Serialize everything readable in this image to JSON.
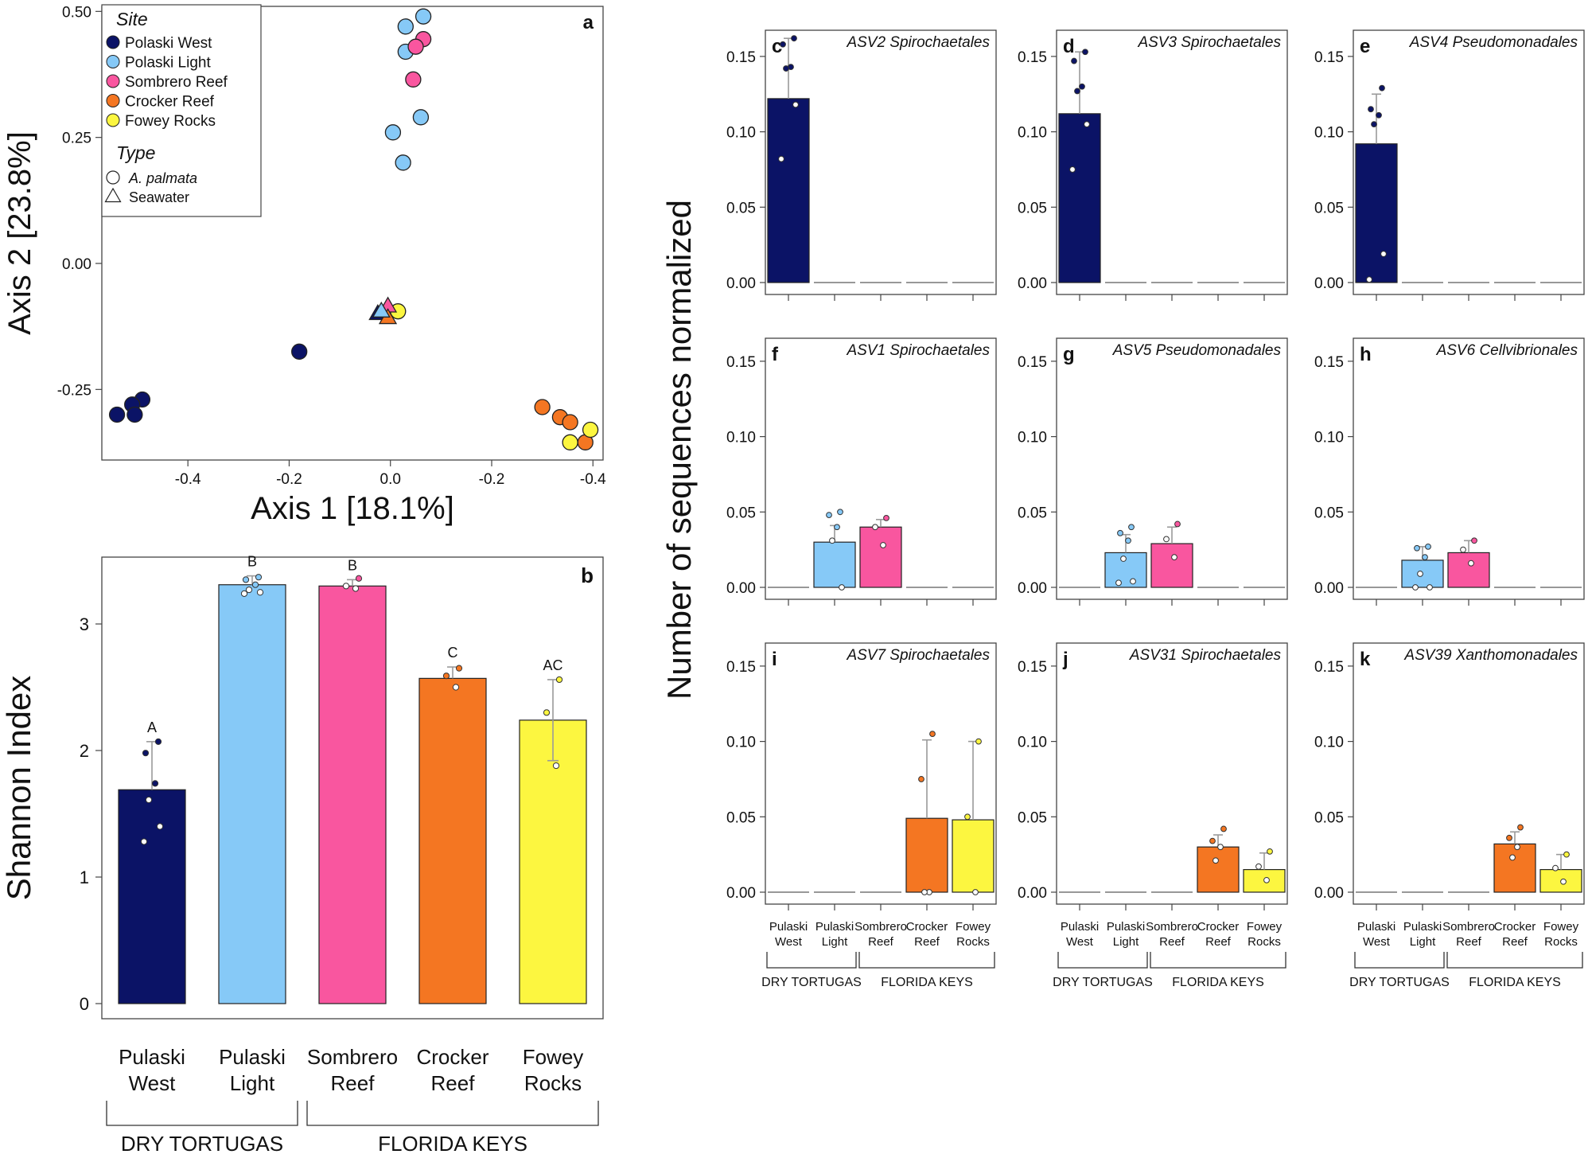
{
  "site_colors": {
    "Polaski West": "#0b1366",
    "Polaski Light": "#86c9f7",
    "Sombrero Reef": "#f9569f",
    "Crocker Reef": "#f47622",
    "Fowey Rocks": "#fcf640"
  },
  "chart_data": [
    {
      "id": "a",
      "type": "scatter",
      "panel_label": "a",
      "xlabel": "Axis 1 [18.1%]",
      "ylabel": "Axis 2 [23.8%]",
      "xlim": [
        -0.57,
        0.42
      ],
      "ylim": [
        -0.39,
        0.51
      ],
      "x_reversed_tick_labels": true,
      "xticks": [
        {
          "v": -0.4,
          "label": "-0.4"
        },
        {
          "v": -0.2,
          "label": "-0.2"
        },
        {
          "v": 0.0,
          "label": "0.0"
        },
        {
          "v": 0.2,
          "label": "-0.2"
        },
        {
          "v": 0.4,
          "label": "-0.4"
        }
      ],
      "yticks": [
        {
          "v": -0.25,
          "label": "-0.25"
        },
        {
          "v": 0.0,
          "label": "0.00"
        },
        {
          "v": 0.25,
          "label": "0.25"
        },
        {
          "v": 0.5,
          "label": "0.50"
        }
      ],
      "legend": {
        "position": "top-left",
        "site_title": "Site",
        "sites": [
          "Polaski West",
          "Polaski Light",
          "Sombrero Reef",
          "Crocker Reef",
          "Fowey Rocks"
        ],
        "type_title": "Type",
        "types": [
          {
            "label": "A. palmata",
            "shape": "circle"
          },
          {
            "label": "Seawater",
            "shape": "triangle"
          }
        ]
      },
      "points": [
        {
          "site": "Polaski West",
          "shape": "circle",
          "x": -0.49,
          "y": -0.27
        },
        {
          "site": "Polaski West",
          "shape": "circle",
          "x": -0.51,
          "y": -0.28
        },
        {
          "site": "Polaski West",
          "shape": "circle",
          "x": -0.54,
          "y": -0.3
        },
        {
          "site": "Polaski West",
          "shape": "circle",
          "x": -0.505,
          "y": -0.3
        },
        {
          "site": "Polaski West",
          "shape": "circle",
          "x": -0.18,
          "y": -0.175
        },
        {
          "site": "Polaski Light",
          "shape": "circle",
          "x": 0.065,
          "y": 0.49
        },
        {
          "site": "Polaski Light",
          "shape": "circle",
          "x": 0.03,
          "y": 0.47
        },
        {
          "site": "Polaski Light",
          "shape": "circle",
          "x": 0.03,
          "y": 0.42
        },
        {
          "site": "Polaski Light",
          "shape": "circle",
          "x": 0.06,
          "y": 0.29
        },
        {
          "site": "Polaski Light",
          "shape": "circle",
          "x": 0.005,
          "y": 0.26
        },
        {
          "site": "Polaski Light",
          "shape": "circle",
          "x": 0.025,
          "y": 0.2
        },
        {
          "site": "Sombrero Reef",
          "shape": "circle",
          "x": 0.065,
          "y": 0.445
        },
        {
          "site": "Sombrero Reef",
          "shape": "circle",
          "x": 0.05,
          "y": 0.43
        },
        {
          "site": "Sombrero Reef",
          "shape": "circle",
          "x": 0.045,
          "y": 0.365
        },
        {
          "site": "Crocker Reef",
          "shape": "circle",
          "x": 0.3,
          "y": -0.285
        },
        {
          "site": "Crocker Reef",
          "shape": "circle",
          "x": 0.335,
          "y": -0.305
        },
        {
          "site": "Crocker Reef",
          "shape": "circle",
          "x": 0.355,
          "y": -0.315
        },
        {
          "site": "Crocker Reef",
          "shape": "circle",
          "x": 0.385,
          "y": -0.355
        },
        {
          "site": "Fowey Rocks",
          "shape": "circle",
          "x": 0.395,
          "y": -0.33
        },
        {
          "site": "Fowey Rocks",
          "shape": "circle",
          "x": 0.355,
          "y": -0.355
        },
        {
          "site": "Fowey Rocks",
          "shape": "circle",
          "x": 0.015,
          "y": -0.095
        },
        {
          "site": "Polaski West",
          "shape": "triangle",
          "x": -0.025,
          "y": -0.1
        },
        {
          "site": "Sombrero Reef",
          "shape": "triangle",
          "x": -0.005,
          "y": -0.085
        },
        {
          "site": "Crocker Reef",
          "shape": "triangle",
          "x": -0.005,
          "y": -0.108
        },
        {
          "site": "Polaski Light",
          "shape": "triangle",
          "x": -0.018,
          "y": -0.095
        }
      ]
    },
    {
      "id": "b",
      "type": "bar",
      "panel_label": "b",
      "ylabel": "Shannon Index",
      "ylim": [
        0,
        3.5
      ],
      "yticks": [
        0,
        1,
        2,
        3
      ],
      "categories": [
        "Pulaski West",
        "Pulaski Light",
        "Sombrero Reef",
        "Crocker Reef",
        "Fowey Rocks"
      ],
      "category_lines": [
        [
          "Pulaski",
          "West"
        ],
        [
          "Pulaski",
          "Light"
        ],
        [
          "Sombrero",
          "Reef"
        ],
        [
          "Crocker",
          "Reef"
        ],
        [
          "Fowey",
          "Rocks"
        ]
      ],
      "sites": [
        "Polaski West",
        "Polaski Light",
        "Sombrero Reef",
        "Crocker Reef",
        "Fowey Rocks"
      ],
      "values": [
        1.69,
        3.31,
        3.3,
        2.57,
        2.24
      ],
      "error_upper": [
        2.07,
        3.38,
        3.35,
        2.66,
        2.56
      ],
      "error_lower": [
        null,
        null,
        null,
        null,
        1.92
      ],
      "letters": [
        "A",
        "B",
        "B",
        "C",
        "AC"
      ],
      "points": [
        {
          "cat": 0,
          "y": 2.07,
          "fill": "site"
        },
        {
          "cat": 0,
          "y": 1.98,
          "fill": "site"
        },
        {
          "cat": 0,
          "y": 1.74,
          "fill": "site"
        },
        {
          "cat": 0,
          "y": 1.61,
          "fill": "white"
        },
        {
          "cat": 0,
          "y": 1.4,
          "fill": "white"
        },
        {
          "cat": 0,
          "y": 1.28,
          "fill": "white"
        },
        {
          "cat": 1,
          "y": 3.37,
          "fill": "site"
        },
        {
          "cat": 1,
          "y": 3.35,
          "fill": "site"
        },
        {
          "cat": 1,
          "y": 3.31,
          "fill": "site"
        },
        {
          "cat": 1,
          "y": 3.27,
          "fill": "white"
        },
        {
          "cat": 1,
          "y": 3.25,
          "fill": "white"
        },
        {
          "cat": 1,
          "y": 3.24,
          "fill": "white"
        },
        {
          "cat": 2,
          "y": 3.36,
          "fill": "site"
        },
        {
          "cat": 2,
          "y": 3.3,
          "fill": "white"
        },
        {
          "cat": 2,
          "y": 3.28,
          "fill": "white"
        },
        {
          "cat": 3,
          "y": 2.65,
          "fill": "site"
        },
        {
          "cat": 3,
          "y": 2.59,
          "fill": "site"
        },
        {
          "cat": 3,
          "y": 2.5,
          "fill": "white"
        },
        {
          "cat": 4,
          "y": 2.56,
          "fill": "site"
        },
        {
          "cat": 4,
          "y": 2.3,
          "fill": "site"
        },
        {
          "cat": 4,
          "y": 1.88,
          "fill": "white"
        }
      ],
      "groups": [
        {
          "label": "DRY TORTUGAS",
          "from": 0,
          "to": 1
        },
        {
          "label": "FLORIDA KEYS",
          "from": 2,
          "to": 4
        }
      ]
    }
  ],
  "asv_panels": {
    "ylabel": "Number of sequences normalized",
    "ylim": [
      -0.008,
      0.165
    ],
    "yticks": [
      {
        "v": 0.0,
        "label": "0.00"
      },
      {
        "v": 0.05,
        "label": "0.05"
      },
      {
        "v": 0.1,
        "label": "0.10"
      },
      {
        "v": 0.15,
        "label": "0.15"
      }
    ],
    "categories": [
      "Pulaski West",
      "Pulaski Light",
      "Sombrero Reef",
      "Crocker Reef",
      "Fowey Rocks"
    ],
    "category_lines": [
      [
        "Pulaski",
        "West"
      ],
      [
        "Pulaski",
        "Light"
      ],
      [
        "Sombrero",
        "Reef"
      ],
      [
        "Crocker",
        "Reef"
      ],
      [
        "Fowey",
        "Rocks"
      ]
    ],
    "groups": [
      {
        "label": "DRY TORTUGAS",
        "from": 0,
        "to": 1
      },
      {
        "label": "FLORIDA KEYS",
        "from": 2,
        "to": 4
      }
    ],
    "sites": [
      "Polaski West",
      "Polaski Light",
      "Sombrero Reef",
      "Crocker Reef",
      "Fowey Rocks"
    ],
    "panels": [
      {
        "letter": "c",
        "title": "ASV2 Spirochaetales",
        "values": [
          0.122,
          0,
          0,
          0,
          0
        ],
        "err": [
          0.162,
          0,
          0,
          0,
          0
        ],
        "points": [
          [
            0,
            0.162,
            "site"
          ],
          [
            0,
            0.158,
            "site"
          ],
          [
            0,
            0.143,
            "site"
          ],
          [
            0,
            0.142,
            "site"
          ],
          [
            0,
            0.118,
            "white"
          ],
          [
            0,
            0.082,
            "white"
          ]
        ]
      },
      {
        "letter": "d",
        "title": "ASV3 Spirochaetales",
        "values": [
          0.112,
          0,
          0,
          0,
          0
        ],
        "err": [
          0.153,
          0,
          0,
          0,
          0
        ],
        "points": [
          [
            0,
            0.153,
            "site"
          ],
          [
            0,
            0.147,
            "site"
          ],
          [
            0,
            0.13,
            "site"
          ],
          [
            0,
            0.127,
            "site"
          ],
          [
            0,
            0.105,
            "white"
          ],
          [
            0,
            0.075,
            "white"
          ]
        ]
      },
      {
        "letter": "e",
        "title": "ASV4 Pseudomonadales",
        "values": [
          0.092,
          0,
          0,
          0,
          0
        ],
        "err": [
          0.125,
          0,
          0,
          0,
          0
        ],
        "points": [
          [
            0,
            0.129,
            "site"
          ],
          [
            0,
            0.115,
            "site"
          ],
          [
            0,
            0.111,
            "site"
          ],
          [
            0,
            0.105,
            "site"
          ],
          [
            0,
            0.019,
            "white"
          ],
          [
            0,
            0.002,
            "white"
          ]
        ]
      },
      {
        "letter": "f",
        "title": "ASV1 Spirochaetales",
        "values": [
          0,
          0.03,
          0.04,
          0,
          0
        ],
        "err": [
          0,
          0.041,
          0.045,
          0,
          0
        ],
        "points": [
          [
            1,
            0.05,
            "site"
          ],
          [
            1,
            0.048,
            "site"
          ],
          [
            1,
            0.04,
            "site"
          ],
          [
            1,
            0.031,
            "white"
          ],
          [
            1,
            0.0,
            "white"
          ],
          [
            2,
            0.046,
            "site"
          ],
          [
            2,
            0.04,
            "white"
          ],
          [
            2,
            0.028,
            "white"
          ]
        ]
      },
      {
        "letter": "g",
        "title": "ASV5 Pseudomonadales",
        "values": [
          0,
          0.023,
          0.029,
          0,
          0
        ],
        "err": [
          0,
          0.035,
          0.04,
          0,
          0
        ],
        "points": [
          [
            1,
            0.04,
            "site"
          ],
          [
            1,
            0.036,
            "site"
          ],
          [
            1,
            0.031,
            "site"
          ],
          [
            1,
            0.019,
            "white"
          ],
          [
            1,
            0.004,
            "white"
          ],
          [
            1,
            0.003,
            "white"
          ],
          [
            2,
            0.042,
            "site"
          ],
          [
            2,
            0.032,
            "white"
          ],
          [
            2,
            0.02,
            "white"
          ]
        ]
      },
      {
        "letter": "h",
        "title": "ASV6 Cellvibrionales",
        "values": [
          0,
          0.018,
          0.023,
          0,
          0
        ],
        "err": [
          0,
          0.027,
          0.031,
          0,
          0
        ],
        "points": [
          [
            1,
            0.027,
            "site"
          ],
          [
            1,
            0.026,
            "site"
          ],
          [
            1,
            0.02,
            "site"
          ],
          [
            1,
            0.009,
            "white"
          ],
          [
            1,
            0.0,
            "white"
          ],
          [
            1,
            0.0,
            "white"
          ],
          [
            2,
            0.031,
            "site"
          ],
          [
            2,
            0.025,
            "white"
          ],
          [
            2,
            0.016,
            "white"
          ]
        ]
      },
      {
        "letter": "i",
        "title": "ASV7 Spirochaetales",
        "values": [
          0,
          0,
          0,
          0.049,
          0.048
        ],
        "err": [
          0,
          0,
          0,
          0.101,
          0.1
        ],
        "points": [
          [
            3,
            0.105,
            "site"
          ],
          [
            3,
            0.075,
            "site"
          ],
          [
            3,
            0.0,
            "white"
          ],
          [
            3,
            0.0,
            "white"
          ],
          [
            4,
            0.1,
            "site"
          ],
          [
            4,
            0.05,
            "site"
          ],
          [
            4,
            0.0,
            "white"
          ]
        ]
      },
      {
        "letter": "j",
        "title": "ASV31 Spirochaetales",
        "values": [
          0,
          0,
          0,
          0.03,
          0.015
        ],
        "err": [
          0,
          0,
          0,
          0.038,
          0.026
        ],
        "points": [
          [
            3,
            0.042,
            "site"
          ],
          [
            3,
            0.034,
            "site"
          ],
          [
            3,
            0.03,
            "white"
          ],
          [
            3,
            0.021,
            "white"
          ],
          [
            4,
            0.027,
            "site"
          ],
          [
            4,
            0.017,
            "white"
          ],
          [
            4,
            0.008,
            "white"
          ]
        ]
      },
      {
        "letter": "k",
        "title": "ASV39 Xanthomonadales",
        "values": [
          0,
          0,
          0,
          0.032,
          0.015
        ],
        "err": [
          0,
          0,
          0,
          0.04,
          0.025
        ],
        "points": [
          [
            3,
            0.043,
            "site"
          ],
          [
            3,
            0.036,
            "site"
          ],
          [
            3,
            0.03,
            "white"
          ],
          [
            3,
            0.023,
            "white"
          ],
          [
            4,
            0.025,
            "site"
          ],
          [
            4,
            0.016,
            "white"
          ],
          [
            4,
            0.007,
            "white"
          ]
        ]
      }
    ]
  }
}
